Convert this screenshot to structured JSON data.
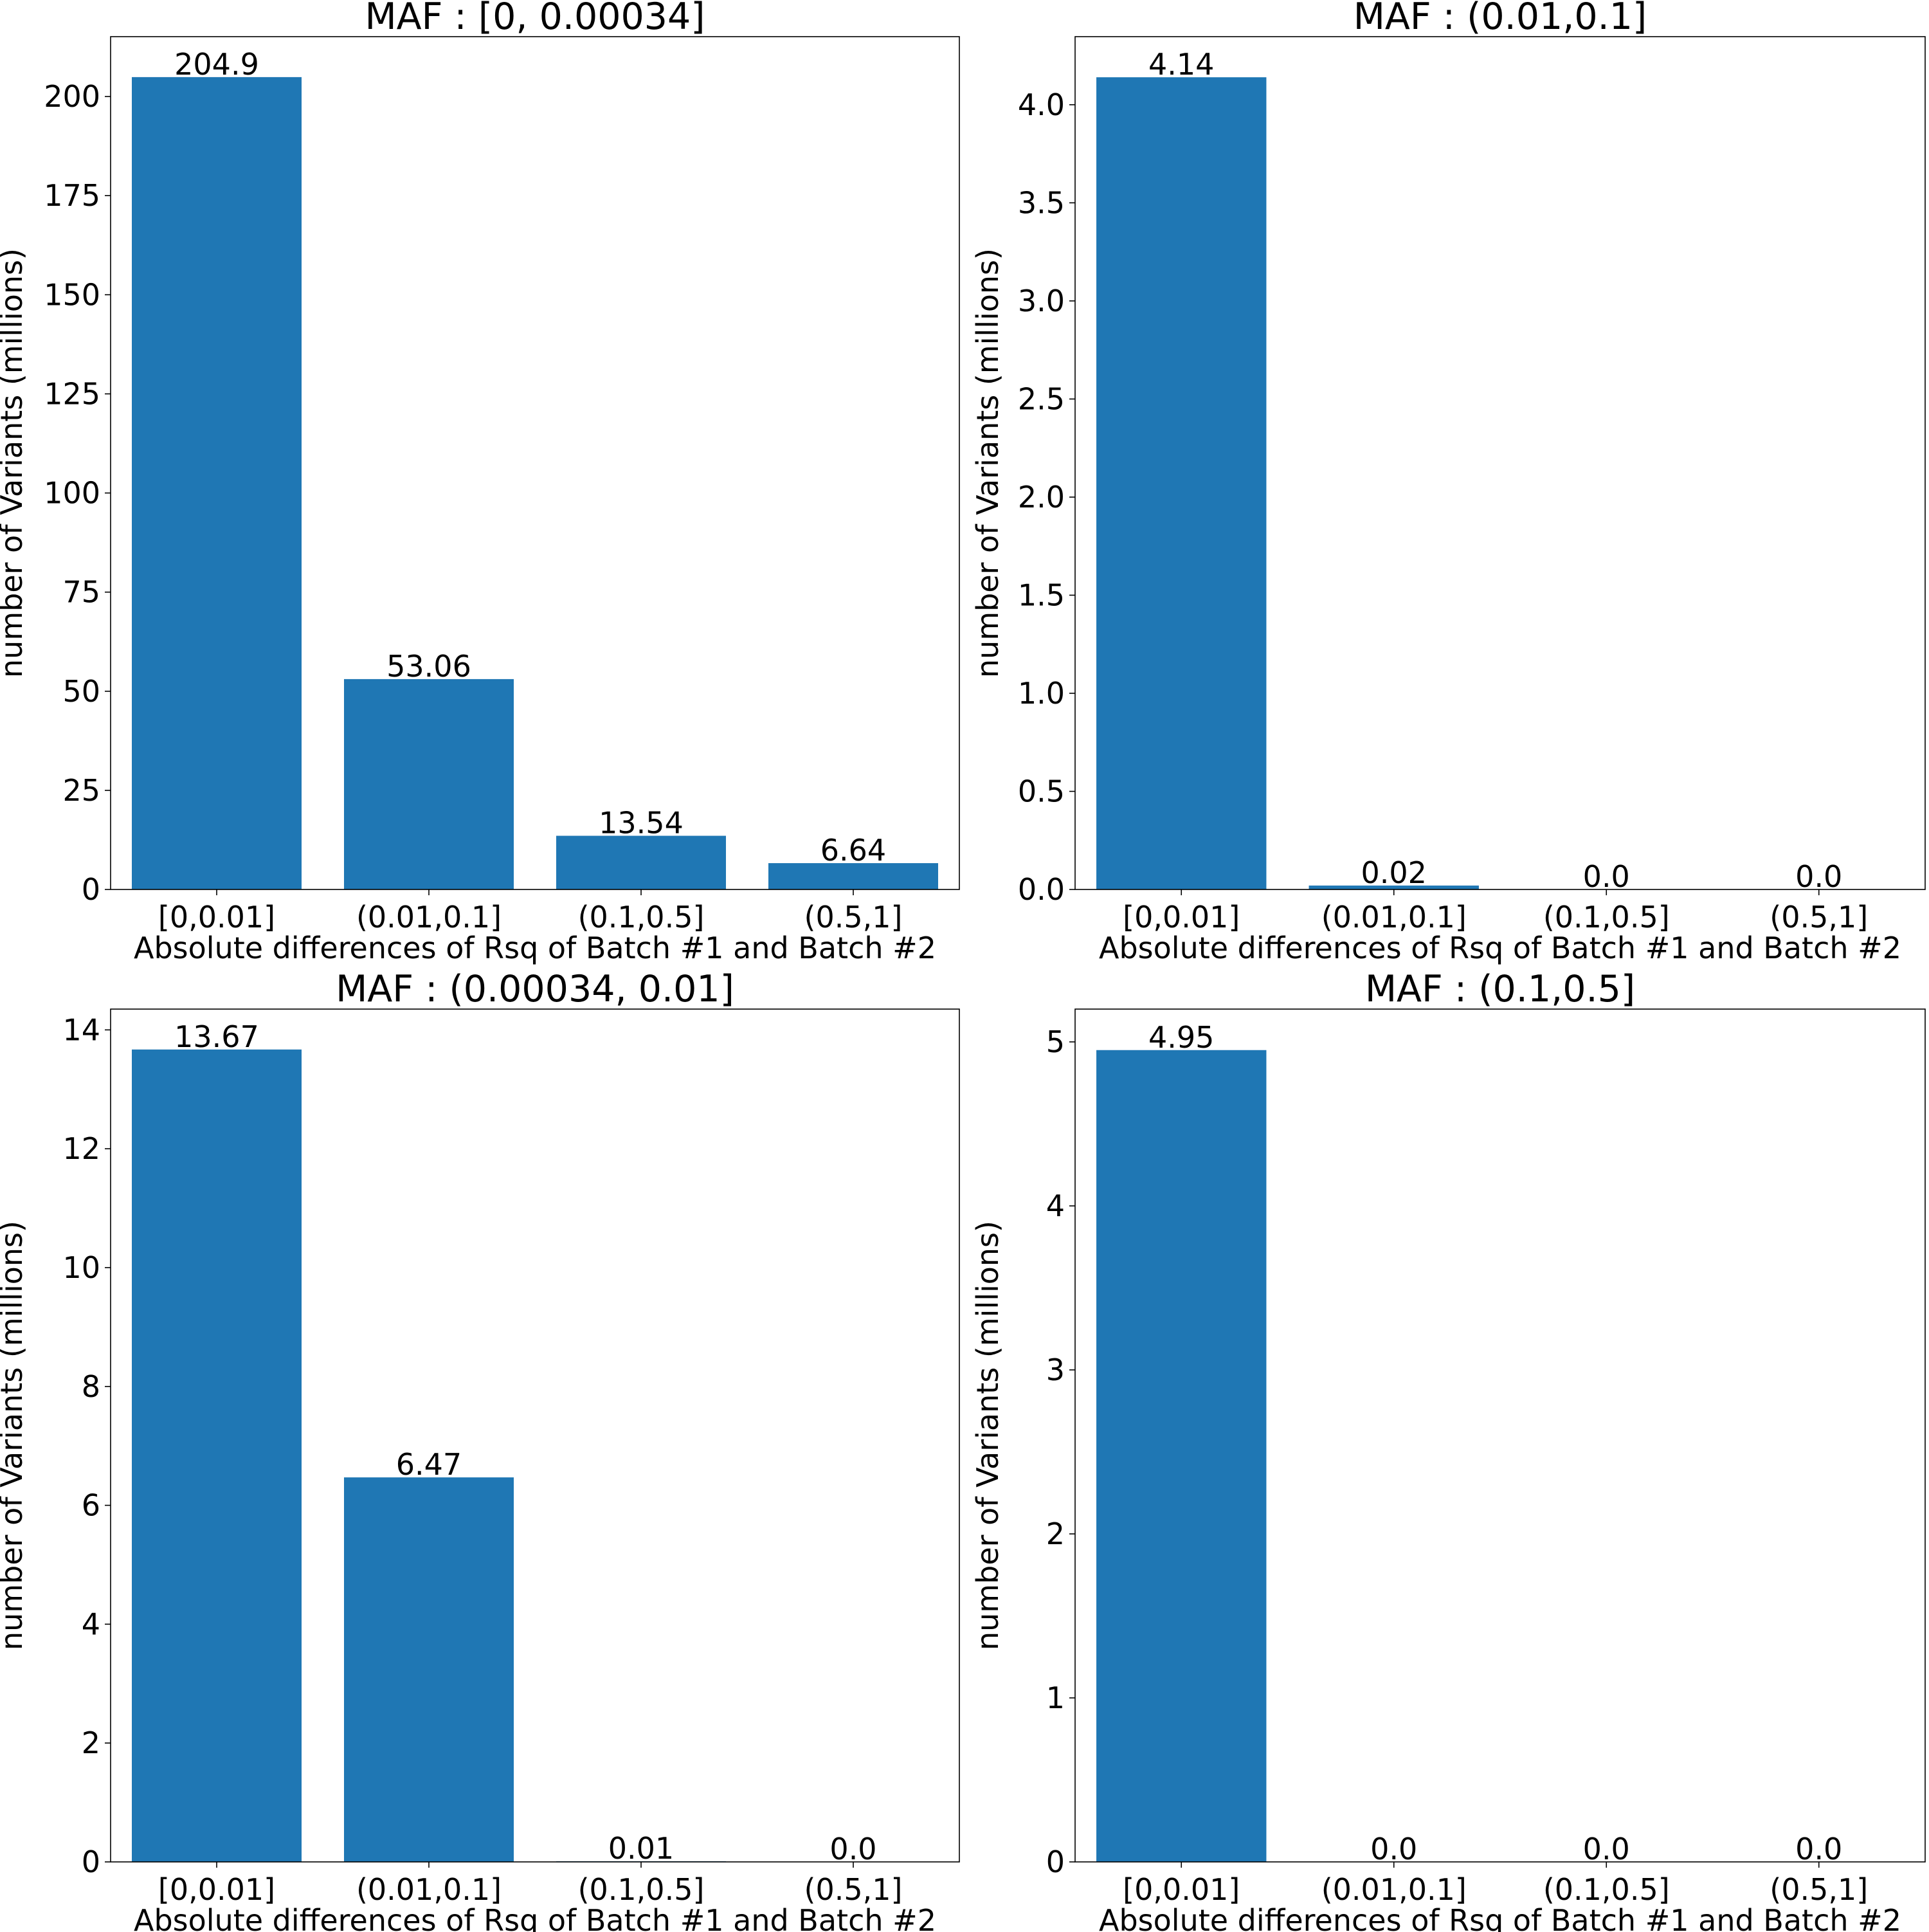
{
  "chart_data": [
    {
      "type": "bar",
      "title": "MAF : [0, 0.00034]",
      "xlabel": "Absolute differences of Rsq of Batch #1 and Batch #2",
      "ylabel": "number of Variants (millions)",
      "categories": [
        "[0,0.01]",
        "(0.01,0.1]",
        "(0.1,0.5]",
        "(0.5,1]"
      ],
      "values": [
        204.9,
        53.06,
        13.54,
        6.64
      ],
      "data_labels": [
        "204.9",
        "53.06",
        "13.54",
        "6.64"
      ],
      "yticks": [
        0,
        25,
        50,
        75,
        100,
        125,
        150,
        175,
        200
      ],
      "ylim": [
        0,
        215.1
      ],
      "color": "#1f77b4",
      "grid": false
    },
    {
      "type": "bar",
      "title": "MAF : (0.01,0.1]",
      "xlabel": "Absolute differences of Rsq of Batch #1 and Batch #2",
      "ylabel": "number of Variants (millions)",
      "categories": [
        "[0,0.01]",
        "(0.01,0.1]",
        "(0.1,0.5]",
        "(0.5,1]"
      ],
      "values": [
        4.14,
        0.02,
        0.0,
        0.0
      ],
      "data_labels": [
        "4.14",
        "0.02",
        "0.0",
        "0.0"
      ],
      "yticks": [
        "0.0",
        "0.5",
        "1.0",
        "1.5",
        "2.0",
        "2.5",
        "3.0",
        "3.5",
        "4.0"
      ],
      "ylim": [
        0,
        4.347
      ],
      "color": "#1f77b4",
      "grid": false
    },
    {
      "type": "bar",
      "title": "MAF : (0.00034, 0.01]",
      "xlabel": "Absolute differences of Rsq of Batch #1 and Batch #2",
      "ylabel": "number of Variants (millions)",
      "categories": [
        "[0,0.01]",
        "(0.01,0.1]",
        "(0.1,0.5]",
        "(0.5,1]"
      ],
      "values": [
        13.67,
        6.47,
        0.01,
        0.0
      ],
      "data_labels": [
        "13.67",
        "6.47",
        "0.01",
        "0.0"
      ],
      "yticks": [
        0,
        2,
        4,
        6,
        8,
        10,
        12,
        14
      ],
      "ylim": [
        0,
        14.35
      ],
      "color": "#1f77b4",
      "grid": false
    },
    {
      "type": "bar",
      "title": "MAF : (0.1,0.5]",
      "xlabel": "Absolute differences of Rsq of Batch #1 and Batch #2",
      "ylabel": "number of Variants (millions)",
      "categories": [
        "[0,0.01]",
        "(0.01,0.1]",
        "(0.1,0.5]",
        "(0.5,1]"
      ],
      "values": [
        4.95,
        0.0,
        0.0,
        0.0
      ],
      "data_labels": [
        "4.95",
        "0.0",
        "0.0",
        "0.0"
      ],
      "yticks": [
        0,
        1,
        2,
        3,
        4,
        5
      ],
      "ylim": [
        0,
        5.2
      ],
      "color": "#1f77b4",
      "grid": false
    }
  ]
}
